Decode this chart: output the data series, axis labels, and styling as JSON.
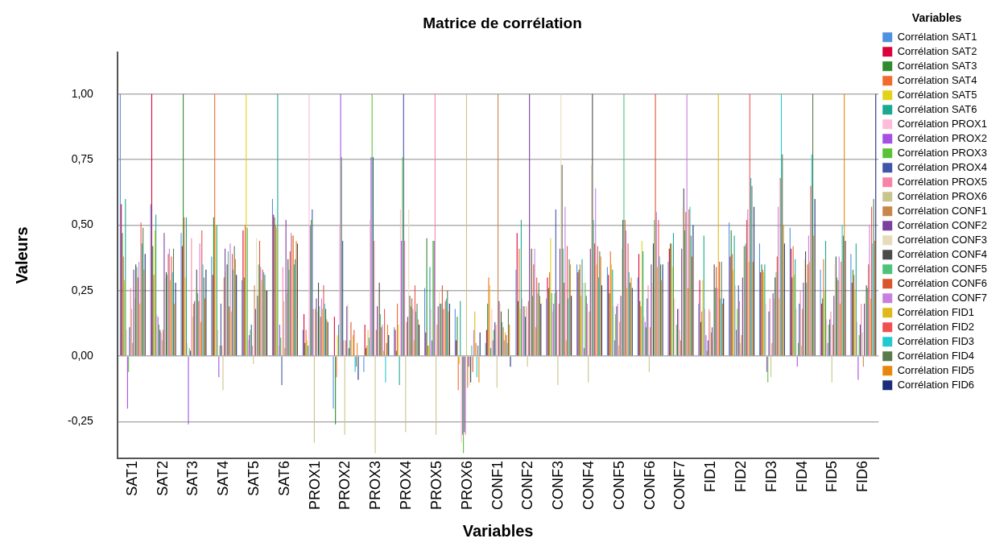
{
  "chart_data": {
    "type": "bar",
    "title": "Matrice de corrélation",
    "xlabel": "Variables",
    "ylabel": "Valeurs",
    "legend_title": "Variables",
    "legend": "right",
    "grid": "y",
    "categories": [
      "SAT1",
      "SAT2",
      "SAT3",
      "SAT4",
      "SAT5",
      "SAT6",
      "PROX1",
      "PROX2",
      "PROX3",
      "PROX4",
      "PROX5",
      "PROX6",
      "CONF1",
      "CONF2",
      "CONF3",
      "CONF4",
      "CONF5",
      "CONF6",
      "CONF7",
      "FID1",
      "FID2",
      "FID3",
      "FID4",
      "FID5",
      "FID6"
    ],
    "ylim": [
      -0.39,
      1.16
    ],
    "yticks": [
      {
        "value": -0.25,
        "label": "-0,25"
      },
      {
        "value": 0,
        "label": "0,00"
      },
      {
        "value": 0.25,
        "label": "0,25"
      },
      {
        "value": 0.5,
        "label": "0,50"
      },
      {
        "value": 0.75,
        "label": "0,75"
      },
      {
        "value": 1,
        "label": "1,00"
      }
    ],
    "series": [
      {
        "name": "Corrélation SAT1",
        "color": "#4e91e0",
        "values": [
          1,
          0.58,
          0.47,
          0.38,
          0.29,
          0.6,
          0.1,
          -0.2,
          -0.06,
          0.11,
          0.26,
          0.18,
          0.05,
          0.33,
          0.22,
          0.35,
          0.34,
          0.3,
          0.36,
          0.2,
          0.51,
          0.43,
          0.49,
          0.33,
          0.39
        ]
      },
      {
        "name": "Corrélation SAT2",
        "color": "#d9003d",
        "values": [
          0.58,
          1,
          0.42,
          0.31,
          0.48,
          0.54,
          0.16,
          0.15,
          0.12,
          0.1,
          0.09,
          0.06,
          0.1,
          0.47,
          0.3,
          0.32,
          0.31,
          0.39,
          0.41,
          0.29,
          0.38,
          0.32,
          0.41,
          0.2,
          0.28
        ]
      },
      {
        "name": "Corrélation SAT3",
        "color": "#2e8b2e",
        "values": [
          0.47,
          0.42,
          1,
          0.53,
          0.3,
          0.53,
          0.05,
          -0.26,
          0.03,
          0.02,
          0.45,
          0.15,
          0.2,
          0.21,
          0.26,
          0.33,
          0.24,
          0.21,
          0.43,
          0.13,
          0.48,
          0.35,
          0.3,
          0.22,
          0.33
        ]
      },
      {
        "name": "Corrélation SAT4",
        "color": "#f26b2e",
        "values": [
          0.38,
          0.31,
          0.53,
          1,
          0.5,
          0.5,
          0.1,
          -0.08,
          0.04,
          0.2,
          0.04,
          -0.13,
          0.3,
          0.41,
          0.32,
          0.35,
          0.4,
          0.19,
          0.43,
          0.17,
          0.39,
          0.33,
          0.42,
          0.37,
          0.31
        ]
      },
      {
        "name": "Corrélation SAT5",
        "color": "#e3d21a",
        "values": [
          0.29,
          0.48,
          0.3,
          0.5,
          1,
          0.49,
          0.06,
          0.08,
          0.1,
          0.12,
          0.04,
          -0.03,
          0.27,
          0.18,
          0.45,
          0.23,
          0.35,
          0.44,
          0.34,
          0.29,
          0.33,
          0.32,
          0.31,
          0.25,
          0.25
        ]
      },
      {
        "name": "Corrélation SAT6",
        "color": "#1aa890",
        "values": [
          0.6,
          0.54,
          0.53,
          0.5,
          0.49,
          1,
          0.04,
          0.12,
          0.07,
          -0.11,
          0.34,
          0.21,
          0.03,
          0.52,
          0.24,
          0.37,
          0.33,
          0.4,
          0.47,
          0.46,
          0.46,
          0.35,
          0.37,
          0.44,
          0.43
        ]
      },
      {
        "name": "Corrélation PROX1",
        "color": "#ffbcd9",
        "values": [
          0.1,
          0.16,
          0.05,
          0.1,
          0.06,
          0.04,
          1,
          0.5,
          0.52,
          0.56,
          0.18,
          -0.33,
          0.18,
          0.22,
          0.17,
          0.28,
          0.19,
          0.15,
          0.22,
          0.18,
          0.27,
          0.2,
          0.18,
          0.14,
          0.13
        ]
      },
      {
        "name": "Corrélation PROX2",
        "color": "#a64ee6",
        "values": [
          -0.2,
          0.15,
          -0.26,
          -0.08,
          0.08,
          0.12,
          0.5,
          1,
          0.76,
          0.44,
          0.06,
          -0.3,
          0.06,
          0.19,
          0.2,
          0.03,
          0.06,
          0.13,
          0.0,
          0.08,
          0.1,
          -0.06,
          -0.04,
          0.05,
          -0.09
        ]
      },
      {
        "name": "Corrélation PROX3",
        "color": "#5bc236",
        "values": [
          -0.06,
          0.12,
          0.03,
          0.04,
          0.1,
          0.07,
          0.52,
          0.76,
          1,
          0.76,
          0.44,
          -0.37,
          0.1,
          0.19,
          0.24,
          0.28,
          0.16,
          0.11,
          0.12,
          0.02,
          0.18,
          -0.1,
          0.05,
          0.12,
          0.08
        ]
      },
      {
        "name": "Corrélation PROX4",
        "color": "#3f56a8",
        "values": [
          0.11,
          0.1,
          0.02,
          0.2,
          0.12,
          -0.11,
          0.56,
          0.44,
          0.76,
          1,
          0.44,
          -0.29,
          0.13,
          0.15,
          0.56,
          0.23,
          0.19,
          0.22,
          0.18,
          0.06,
          0.27,
          0.17,
          0.2,
          0.14,
          0.12
        ]
      },
      {
        "name": "Corrélation PROX5",
        "color": "#f784a8",
        "values": [
          0.26,
          0.09,
          0.45,
          0.04,
          0.04,
          0.34,
          0.18,
          0.06,
          0.44,
          0.44,
          1,
          -0.3,
          0.12,
          0.19,
          0.25,
          0.2,
          0.2,
          0.27,
          0.18,
          0.18,
          0.21,
          0.22,
          0.25,
          0.17,
          0.2
        ]
      },
      {
        "name": "Corrélation PROX6",
        "color": "#c9c48a",
        "values": [
          0.18,
          0.06,
          0.15,
          -0.13,
          -0.03,
          0.21,
          -0.33,
          -0.3,
          -0.37,
          -0.29,
          -0.3,
          1,
          -0.12,
          -0.04,
          -0.11,
          -0.1,
          0.04,
          -0.06,
          0.1,
          0.17,
          0.05,
          -0.08,
          0.04,
          -0.1,
          0.09
        ]
      },
      {
        "name": "Corrélation CONF1",
        "color": "#c8864a",
        "values": [
          0.05,
          0.1,
          0.2,
          0.3,
          0.27,
          0.03,
          0.18,
          0.06,
          0.1,
          0.13,
          0.12,
          -0.12,
          1,
          0.21,
          0.2,
          0.17,
          0.13,
          0.11,
          0.06,
          0.09,
          0.08,
          0.05,
          0.18,
          0.12,
          -0.04
        ]
      },
      {
        "name": "Corrélation CONF2",
        "color": "#7b3f9e",
        "values": [
          0.33,
          0.47,
          0.21,
          0.41,
          0.18,
          0.52,
          0.22,
          0.19,
          0.19,
          0.15,
          0.19,
          -0.04,
          0.21,
          1,
          0.41,
          0.41,
          0.23,
          0.35,
          0.41,
          0.11,
          0.3,
          0.24,
          0.28,
          0.23,
          0.2
        ]
      },
      {
        "name": "Corrélation CONF3",
        "color": "#e6dcbc",
        "values": [
          0.22,
          0.3,
          0.26,
          0.32,
          0.45,
          0.24,
          0.17,
          0.2,
          0.24,
          0.56,
          0.25,
          -0.11,
          0.2,
          0.41,
          1,
          0.73,
          0.41,
          0.28,
          0.57,
          0.06,
          0.42,
          0.22,
          0.37,
          0.35,
          0.23
        ]
      },
      {
        "name": "Corrélation CONF4",
        "color": "#4a4a4a",
        "values": [
          0.35,
          0.32,
          0.33,
          0.35,
          0.23,
          0.37,
          0.28,
          0.03,
          0.28,
          0.23,
          0.2,
          -0.1,
          0.17,
          0.41,
          0.73,
          1,
          0.52,
          0.43,
          0.64,
          0.35,
          0.42,
          0.3,
          0.4,
          0.38,
          0.27
        ]
      },
      {
        "name": "Corrélation CONF5",
        "color": "#4dc27a",
        "values": [
          0.34,
          0.31,
          0.24,
          0.4,
          0.35,
          0.33,
          0.19,
          0.06,
          0.16,
          0.19,
          0.2,
          0.04,
          0.13,
          0.23,
          0.41,
          0.52,
          1,
          0.52,
          0.48,
          0.26,
          0.43,
          0.32,
          0.28,
          0.3,
          0.26
        ]
      },
      {
        "name": "Corrélation CONF6",
        "color": "#d9552e",
        "values": [
          0.3,
          0.39,
          0.21,
          0.19,
          0.44,
          0.4,
          0.15,
          0.13,
          0.11,
          0.22,
          0.27,
          -0.06,
          0.11,
          0.35,
          0.28,
          0.43,
          0.52,
          1,
          0.55,
          0.34,
          0.52,
          0.38,
          0.35,
          0.29,
          0.35
        ]
      },
      {
        "name": "Corrélation CONF7",
        "color": "#c77fe0",
        "values": [
          0.36,
          0.41,
          0.43,
          0.43,
          0.34,
          0.47,
          0.22,
          0.0,
          0.12,
          0.18,
          0.18,
          0.1,
          0.06,
          0.41,
          0.57,
          0.64,
          0.48,
          0.55,
          1,
          0.26,
          0.56,
          0.57,
          0.46,
          0.38,
          0.5
        ]
      },
      {
        "name": "Corrélation FID1",
        "color": "#e0b81a",
        "values": [
          0.2,
          0.29,
          0.13,
          0.17,
          0.29,
          0.46,
          0.18,
          0.08,
          0.02,
          0.06,
          0.18,
          0.17,
          0.09,
          0.11,
          0.06,
          0.35,
          0.26,
          0.34,
          0.26,
          1,
          0.36,
          0.22,
          0.36,
          0.2,
          0.22
        ]
      },
      {
        "name": "Corrélation FID2",
        "color": "#f0504f",
        "values": [
          0.51,
          0.38,
          0.48,
          0.39,
          0.33,
          0.46,
          0.27,
          0.1,
          0.18,
          0.27,
          0.21,
          0.05,
          0.08,
          0.3,
          0.42,
          0.42,
          0.43,
          0.52,
          0.56,
          0.36,
          1,
          0.68,
          0.65,
          0.36,
          0.57
        ]
      },
      {
        "name": "Corrélation FID3",
        "color": "#22c9cf",
        "values": [
          0.43,
          0.32,
          0.35,
          0.33,
          0.32,
          0.35,
          0.2,
          -0.06,
          -0.1,
          0.17,
          0.22,
          -0.08,
          0.05,
          0.24,
          0.22,
          0.3,
          0.32,
          0.38,
          0.57,
          0.22,
          0.68,
          1,
          0.77,
          0.5,
          0.43
        ]
      },
      {
        "name": "Corrélation FID4",
        "color": "#5a7a4a",
        "values": [
          0.49,
          0.41,
          0.3,
          0.42,
          0.31,
          0.37,
          0.18,
          -0.04,
          0.05,
          0.2,
          0.25,
          0.04,
          0.18,
          0.28,
          0.37,
          0.4,
          0.28,
          0.35,
          0.46,
          0.36,
          0.65,
          0.77,
          1,
          0.46,
          0.6
        ]
      },
      {
        "name": "Corrélation FID5",
        "color": "#e8870e",
        "values": [
          0.33,
          0.2,
          0.22,
          0.37,
          0.25,
          0.44,
          0.14,
          0.05,
          0.12,
          0.14,
          0.17,
          -0.1,
          0.12,
          0.23,
          0.35,
          0.38,
          0.3,
          0.29,
          0.38,
          0.2,
          0.36,
          0.5,
          0.46,
          1,
          0.44
        ]
      },
      {
        "name": "Corrélation FID6",
        "color": "#1a2d7a",
        "values": [
          0.39,
          0.28,
          0.33,
          0.31,
          0.25,
          0.43,
          0.13,
          -0.09,
          0.08,
          0.12,
          0.2,
          0.09,
          -0.04,
          0.2,
          0.23,
          0.27,
          0.26,
          0.35,
          0.5,
          0.22,
          0.57,
          0.43,
          0.6,
          0.44,
          1
        ]
      }
    ]
  }
}
